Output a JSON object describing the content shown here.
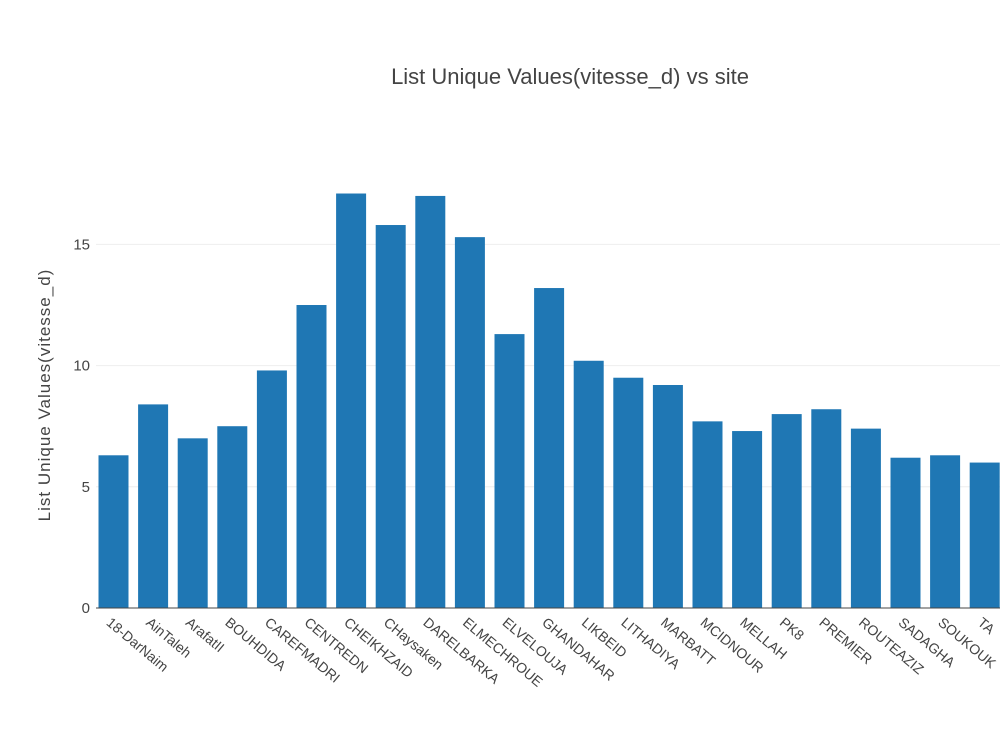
{
  "chart_data": {
    "type": "bar",
    "title": "List Unique Values(vitesse_d) vs site",
    "xlabel": "",
    "ylabel": "List Unique Values(vitesse_d)",
    "categories": [
      "18-DarNaim",
      "AinTaleh",
      "ArafatII",
      "BOUHDIDA",
      "CAREFMADRI",
      "CENTREDN",
      "CHEIKHZAID",
      "CHaysaken",
      "DARELBARKA",
      "ELMECHROUE",
      "ELVELOUJA",
      "GHANDAHAR",
      "LIKBEID",
      "LITHADIYA",
      "MARBATT",
      "MCIDNOUR",
      "MELLAH",
      "PK8",
      "PREMIER",
      "ROUTEAZIZ",
      "SADAGHA",
      "SOUKOUK",
      "TA"
    ],
    "values": [
      6.3,
      8.4,
      7.0,
      7.5,
      9.8,
      12.5,
      17.1,
      15.8,
      17.0,
      15.3,
      11.3,
      13.2,
      10.2,
      9.5,
      9.2,
      7.7,
      7.3,
      8.0,
      8.2,
      7.4,
      6.2,
      6.3,
      6.0
    ],
    "yticks": [
      0,
      5,
      10,
      15
    ],
    "ylim": [
      0,
      18.4
    ],
    "grid": true,
    "colors": {
      "bar": "#1f77b4"
    }
  }
}
